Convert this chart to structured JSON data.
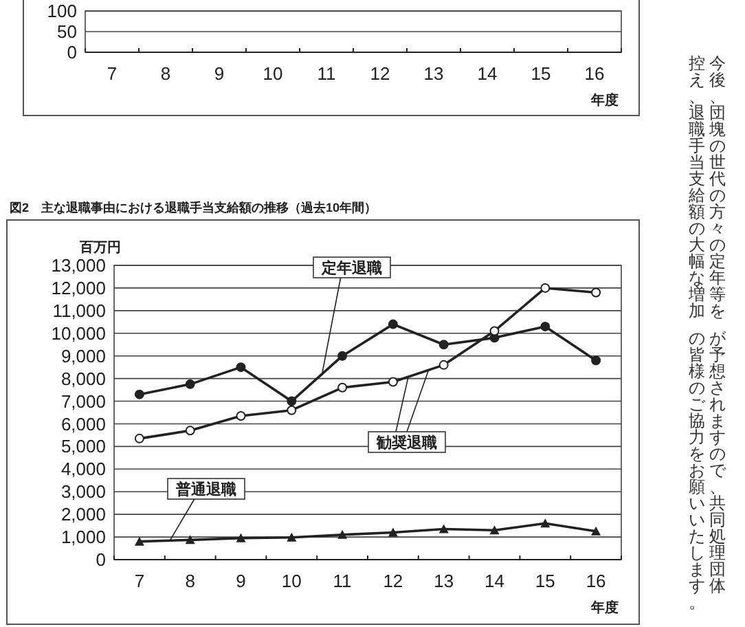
{
  "chart_data": [
    {
      "type": "line",
      "categories": [
        "7",
        "8",
        "9",
        "10",
        "11",
        "12",
        "13",
        "14",
        "15",
        "16"
      ],
      "xlabel": "年度",
      "ylim": [
        0,
        100
      ],
      "yticks": [
        0,
        50,
        100
      ],
      "grid": "y"
    },
    {
      "type": "line",
      "title": "図2　主な退職事由における退職手当支給額の推移（過去10年間）",
      "ylabel": "百万円",
      "xlabel": "年度",
      "categories": [
        "7",
        "8",
        "9",
        "10",
        "11",
        "12",
        "13",
        "14",
        "15",
        "16"
      ],
      "ylim": [
        0,
        13000
      ],
      "yticks": [
        {
          "value": 0,
          "label": "0"
        },
        {
          "value": 1000,
          "label": "1,000"
        },
        {
          "value": 2000,
          "label": "2,000"
        },
        {
          "value": 3000,
          "label": "3,000"
        },
        {
          "value": 4000,
          "label": "4,000"
        },
        {
          "value": 5000,
          "label": "5,000"
        },
        {
          "value": 6000,
          "label": "6,000"
        },
        {
          "value": 7000,
          "label": "7,000"
        },
        {
          "value": 8000,
          "label": "8,000"
        },
        {
          "value": 9000,
          "label": "9,000"
        },
        {
          "value": 10000,
          "label": "10,000"
        },
        {
          "value": 11000,
          "label": "11,000"
        },
        {
          "value": 12000,
          "label": "12,000"
        },
        {
          "value": 13000,
          "label": "13,000"
        }
      ],
      "grid": "y",
      "series": [
        {
          "name": "定年退職",
          "color": "#222222",
          "marker": "circle",
          "values": [
            7300,
            7750,
            8500,
            7000,
            9000,
            10400,
            9500,
            9800,
            10300,
            8800
          ]
        },
        {
          "name": "勧奨退職",
          "color": "#222222",
          "marker": "open-circle",
          "values": [
            5350,
            5700,
            6350,
            6600,
            7600,
            7850,
            8600,
            10100,
            12000,
            11800
          ]
        },
        {
          "name": "普通退職",
          "color": "#222222",
          "marker": "triangle",
          "values": [
            800,
            870,
            950,
            980,
            1100,
            1200,
            1350,
            1300,
            1600,
            1250
          ]
        }
      ]
    },
    {
      "type": "other",
      "annotations": [
        "今後、団塊の世代の方々の定年等を",
        "控え、退職手当支給額の大幅な増加",
        "が予想されますので、共同処理団体",
        "の皆様のご協力をお願いいたします。"
      ]
    }
  ]
}
